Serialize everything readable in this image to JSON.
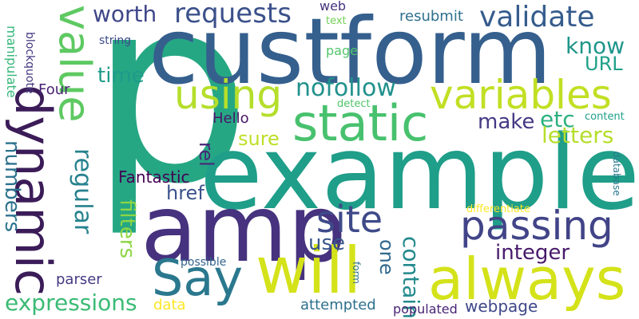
{
  "cloud": {
    "words": [
      {
        "text": "p",
        "color": "#26a784"
      },
      {
        "text": "custform",
        "color": "#355f8d"
      },
      {
        "text": "example",
        "color": "#1f9e89"
      },
      {
        "text": "amp",
        "color": "#46327e"
      },
      {
        "text": "always",
        "color": "#d4e21a"
      },
      {
        "text": "will",
        "color": "#d4e21a"
      },
      {
        "text": "dynamic",
        "color": "#3b1c58"
      },
      {
        "text": "value",
        "color": "#5ec962"
      },
      {
        "text": "Say",
        "color": "#2a788e"
      },
      {
        "text": "static",
        "color": "#48c16e"
      },
      {
        "text": "variables",
        "color": "#c2df23"
      },
      {
        "text": "passing",
        "color": "#414487"
      },
      {
        "text": "using",
        "color": "#b5de2b"
      },
      {
        "text": "site",
        "color": "#3e4a89"
      },
      {
        "text": "validate",
        "color": "#365c8d"
      },
      {
        "text": "requests",
        "color": "#3b518b"
      },
      {
        "text": "worth",
        "color": "#3f4788"
      },
      {
        "text": "regular",
        "color": "#26828e"
      },
      {
        "text": "numbers",
        "color": "#2c728e"
      },
      {
        "text": "filters",
        "color": "#8ed645"
      },
      {
        "text": "expressions",
        "color": "#3bbb75"
      },
      {
        "text": "nofollow",
        "color": "#21918c"
      },
      {
        "text": "know",
        "color": "#1f968b"
      },
      {
        "text": "URL",
        "color": "#1fa188"
      },
      {
        "text": "etc",
        "color": "#2cb17e"
      },
      {
        "text": "letters",
        "color": "#b5de2b"
      },
      {
        "text": "make",
        "color": "#443983"
      },
      {
        "text": "time",
        "color": "#1e9b8a"
      },
      {
        "text": "sure",
        "color": "#bddf26"
      },
      {
        "text": "contain",
        "color": "#238a8d"
      },
      {
        "text": "integer",
        "color": "#481a6c"
      },
      {
        "text": "one",
        "color": "#31688e"
      },
      {
        "text": "use",
        "color": "#39568c"
      },
      {
        "text": "href",
        "color": "#3b528b"
      },
      {
        "text": "rel",
        "color": "#482878"
      },
      {
        "text": "Fantastic",
        "color": "#440154"
      },
      {
        "text": "Hello",
        "color": "#481668"
      },
      {
        "text": "Four",
        "color": "#482173"
      },
      {
        "text": "parser",
        "color": "#443a83"
      },
      {
        "text": "data",
        "color": "#fde725"
      },
      {
        "text": "attempted",
        "color": "#2d708e"
      },
      {
        "text": "populated",
        "color": "#482475"
      },
      {
        "text": "webpage",
        "color": "#3f4889"
      },
      {
        "text": "resubmit",
        "color": "#2e6f8e"
      },
      {
        "text": "web",
        "color": "#46337e"
      },
      {
        "text": "text",
        "color": "#73d056"
      },
      {
        "text": "page",
        "color": "#52c569"
      },
      {
        "text": "string",
        "color": "#3e4c8a"
      },
      {
        "text": "detect",
        "color": "#50c46a"
      },
      {
        "text": "content",
        "color": "#1f9f88"
      },
      {
        "text": "database",
        "color": "#2a788e"
      },
      {
        "text": "differentiate",
        "color": "#fde725"
      },
      {
        "text": "possible",
        "color": "#33638d"
      },
      {
        "text": "form",
        "color": "#2c728e"
      },
      {
        "text": "blockquote",
        "color": "#453781"
      },
      {
        "text": "manipulate",
        "color": "#35b779"
      }
    ]
  }
}
